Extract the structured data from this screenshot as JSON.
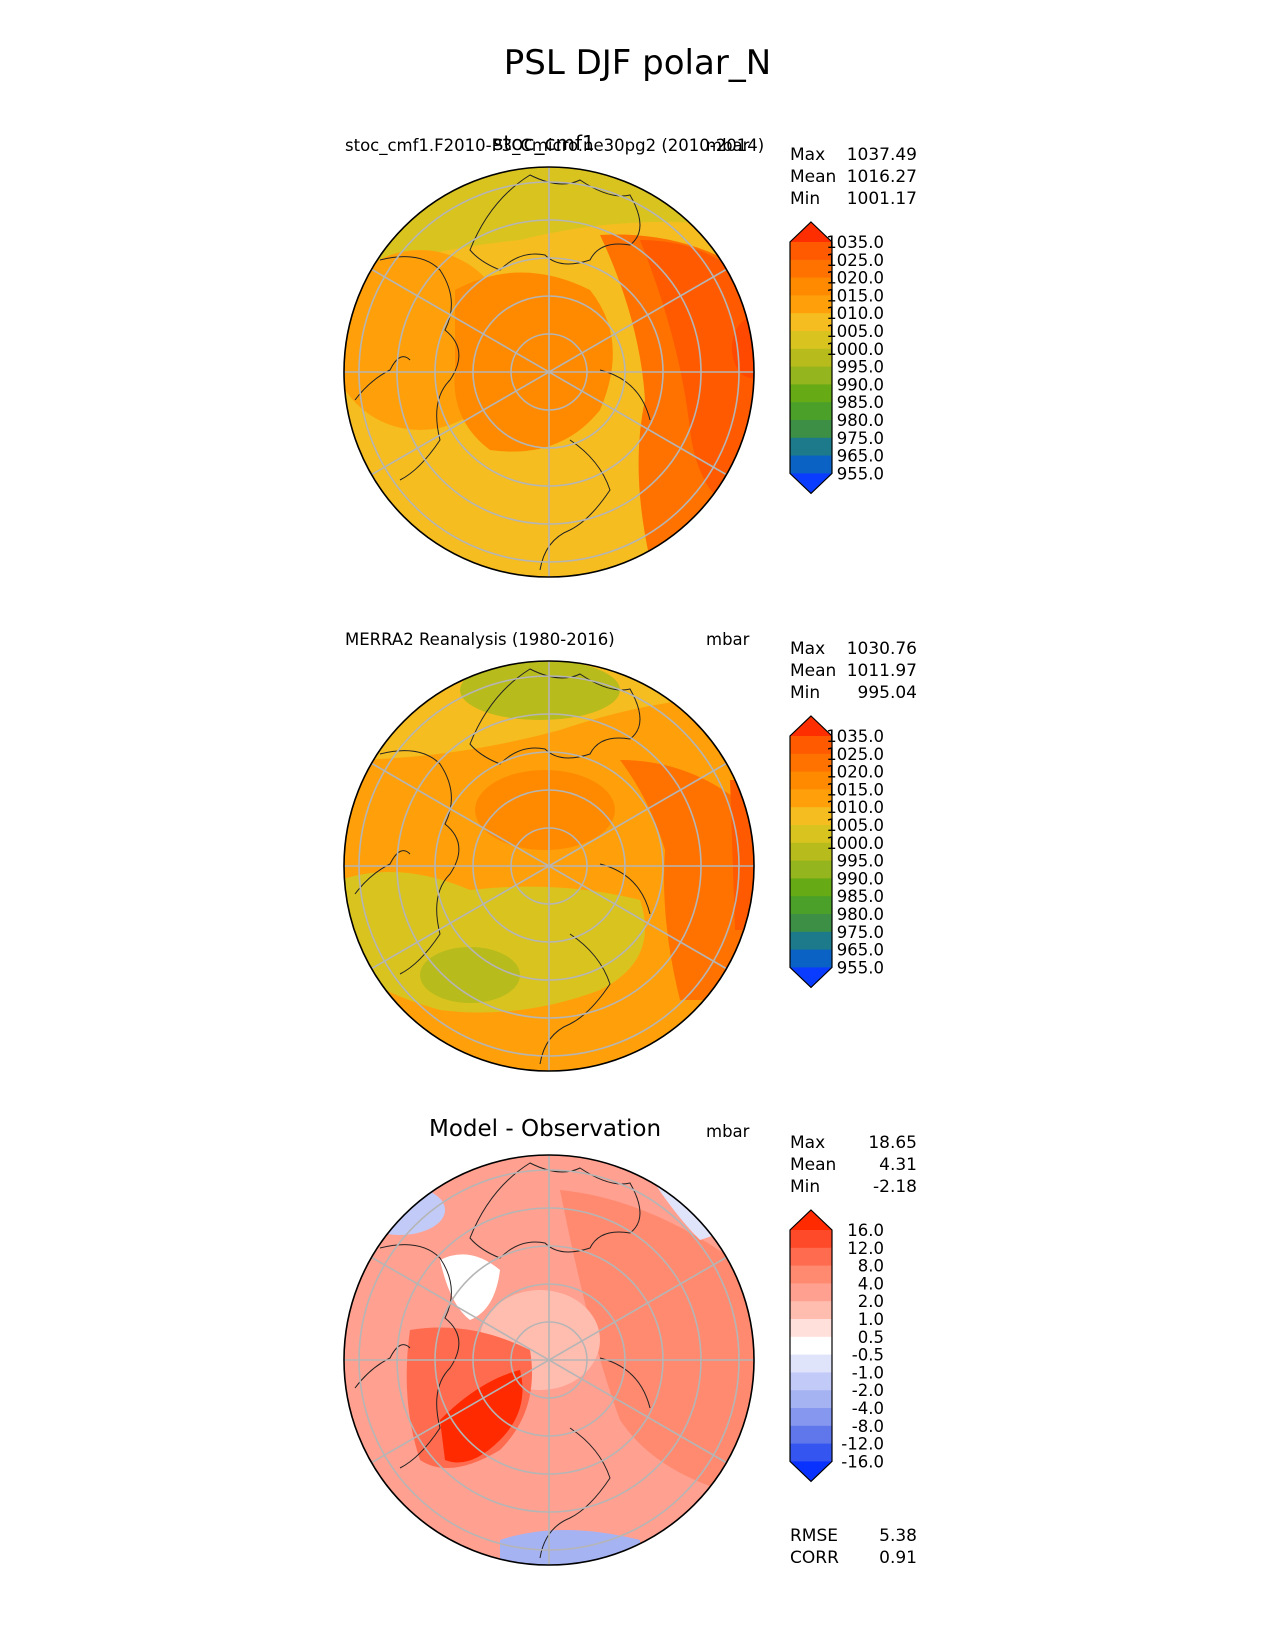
{
  "figure_title": "PSL DJF polar_N",
  "chart_data": [
    {
      "type": "contour-map",
      "projection": "north-polar-stereographic",
      "panel_id": "test",
      "title_left": "stoc_cmf1.F2010-P3_Cmicro.ne30pg2 (2010-2014)",
      "title_center": "stoc_cmf1",
      "title_right": "mbar",
      "stats": [
        {
          "label": "Max",
          "value": "1037.49"
        },
        {
          "label": "Mean",
          "value": "1016.27"
        },
        {
          "label": "Min",
          "value": "1001.17"
        }
      ],
      "colorbar": {
        "levels": [
          "1035.0",
          "1025.0",
          "1020.0",
          "1015.0",
          "1010.0",
          "1005.0",
          "1000.0",
          "995.0",
          "990.0",
          "985.0",
          "980.0",
          "975.0",
          "965.0",
          "955.0"
        ],
        "colors": [
          "#ff2e00",
          "#ff5a00",
          "#ff7200",
          "#ff8a00",
          "#ffa00a",
          "#f5bd20",
          "#d9c41f",
          "#b8bb1c",
          "#94b51e",
          "#66ab15",
          "#4aa028",
          "#3d8f46",
          "#1c7a8a",
          "#0a62c5",
          "#0a3cff"
        ]
      },
      "field_regions": [
        {
          "kind": "background",
          "color": "#f5bd20"
        },
        {
          "kind": "zone",
          "label": "greenland",
          "color": "#ffa00a"
        },
        {
          "kind": "zone",
          "label": "arctic-high",
          "color": "#ff8a00"
        },
        {
          "kind": "zone",
          "label": "north-atlantic-low",
          "color": "#d9c41f"
        },
        {
          "kind": "zone",
          "label": "siberian-high",
          "color": "#ff7200"
        },
        {
          "kind": "zone",
          "label": "siberian-core",
          "color": "#ff5a00"
        },
        {
          "kind": "zone",
          "label": "asia-edge",
          "color": "#ff4800"
        }
      ]
    },
    {
      "type": "contour-map",
      "projection": "north-polar-stereographic",
      "panel_id": "ref",
      "title_left": "MERRA2 Reanalysis (1980-2016)",
      "title_right": "mbar",
      "stats": [
        {
          "label": "Max",
          "value": "1030.76"
        },
        {
          "label": "Mean",
          "value": "1011.97"
        },
        {
          "label": "Min",
          "value": "995.04"
        }
      ],
      "colorbar": {
        "levels": [
          "1035.0",
          "1025.0",
          "1020.0",
          "1015.0",
          "1010.0",
          "1005.0",
          "1000.0",
          "995.0",
          "990.0",
          "985.0",
          "980.0",
          "975.0",
          "965.0",
          "955.0"
        ],
        "colors": [
          "#ff2e00",
          "#ff5a00",
          "#ff7200",
          "#ff8a00",
          "#ffa00a",
          "#f5bd20",
          "#d9c41f",
          "#b8bb1c",
          "#94b51e",
          "#66ab15",
          "#4aa028",
          "#3d8f46",
          "#1c7a8a",
          "#0a62c5",
          "#0a3cff"
        ]
      },
      "field_regions": [
        {
          "kind": "background",
          "color": "#ffa00a"
        },
        {
          "kind": "zone",
          "label": "pacific-low",
          "color": "#f5bd20"
        },
        {
          "kind": "zone",
          "label": "aleutian-core",
          "color": "#b8bb1c"
        },
        {
          "kind": "zone",
          "label": "icelandic-low",
          "color": "#d9c41f"
        },
        {
          "kind": "zone",
          "label": "icelandic-core",
          "color": "#b8bb1c"
        },
        {
          "kind": "zone",
          "label": "arctic-high",
          "color": "#ff8a00"
        },
        {
          "kind": "zone",
          "label": "siberian-high",
          "color": "#ff7200"
        },
        {
          "kind": "zone",
          "label": "asia-edge",
          "color": "#ff5a00"
        }
      ]
    },
    {
      "type": "contour-map",
      "projection": "north-polar-stereographic",
      "panel_id": "diff",
      "title_center": "Model - Observation",
      "title_right": "mbar",
      "stats": [
        {
          "label": "Max",
          "value": "18.65"
        },
        {
          "label": "Mean",
          "value": "4.31"
        },
        {
          "label": "Min",
          "value": "-2.18"
        }
      ],
      "extra_stats": [
        {
          "label": "RMSE",
          "value": "5.38"
        },
        {
          "label": "CORR",
          "value": "0.91"
        }
      ],
      "colorbar": {
        "levels": [
          "16.0",
          "12.0",
          "8.0",
          "4.0",
          "2.0",
          "1.0",
          "0.5",
          "-0.5",
          "-1.0",
          "-2.0",
          "-4.0",
          "-8.0",
          "-12.0",
          "-16.0"
        ],
        "colors": [
          "#ff2a00",
          "#ff4a2a",
          "#ff6b4f",
          "#ff8a70",
          "#ffa090",
          "#ffbdb0",
          "#ffe0da",
          "#ffffff",
          "#dfe4fb",
          "#c2cbf7",
          "#a6b3f3",
          "#8597ef",
          "#5f77ea",
          "#3455ef",
          "#0a32ff"
        ]
      },
      "field_regions": [
        {
          "kind": "background",
          "color": "#ffa090"
        },
        {
          "kind": "zone",
          "label": "eurasia",
          "color": "#ff8a70"
        },
        {
          "kind": "zone",
          "label": "greenland-white",
          "color": "#ffffff"
        },
        {
          "kind": "zone",
          "label": "pole",
          "color": "#ffbdb0"
        },
        {
          "kind": "zone",
          "label": "pacific-negative",
          "color": "#c2cbf7"
        },
        {
          "kind": "zone",
          "label": "pacific-light",
          "color": "#dfe4fb"
        },
        {
          "kind": "zone",
          "label": "atlantic-negative",
          "color": "#a6b3f3"
        },
        {
          "kind": "zone",
          "label": "north-pacific-max",
          "color": "#ff6b4f"
        },
        {
          "kind": "zone",
          "label": "north-pacific-core",
          "color": "#ff2a00"
        }
      ]
    }
  ]
}
